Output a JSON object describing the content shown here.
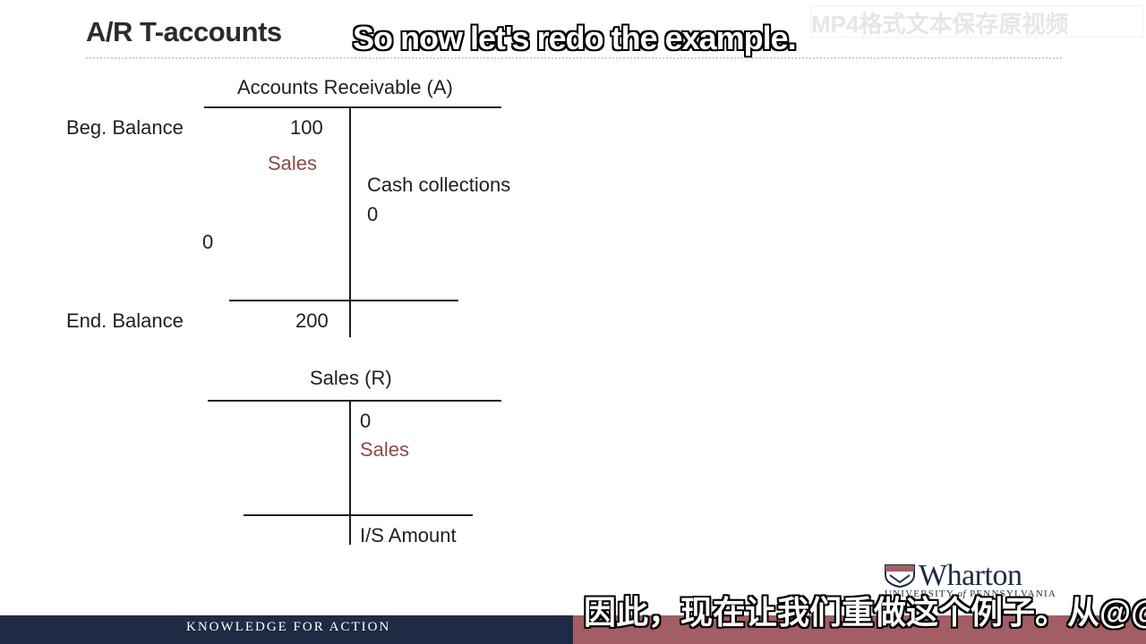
{
  "slide": {
    "title": "A/R T-accounts",
    "watermark": "MP4格式文本保存原视频"
  },
  "subtitles": {
    "top": "So now let's redo the example.",
    "bottom": "因此，现在让我们重做这个例子。从@@"
  },
  "ar_account": {
    "title": "Accounts Receivable (A)",
    "beg_label": "Beg. Balance",
    "beg_value": "100",
    "sales_label": "Sales",
    "cash_label": "Cash collections",
    "cash_value": "0",
    "left_zero": "0",
    "end_label": "End. Balance",
    "end_value": "200"
  },
  "sales_account": {
    "title": "Sales (R)",
    "right_value": "0",
    "sales_label": "Sales",
    "is_label": "I/S Amount"
  },
  "footer": {
    "tagline": "KNOWLEDGE FOR ACTION",
    "logo_name": "Wharton",
    "logo_sub_1": "UNIVERSITY",
    "logo_sub_of": "of",
    "logo_sub_2": "PENNSYLVANIA"
  },
  "colors": {
    "sales_text": "#8a4a4a",
    "footer_navy": "#1f2a44",
    "footer_red": "#a35d64"
  }
}
